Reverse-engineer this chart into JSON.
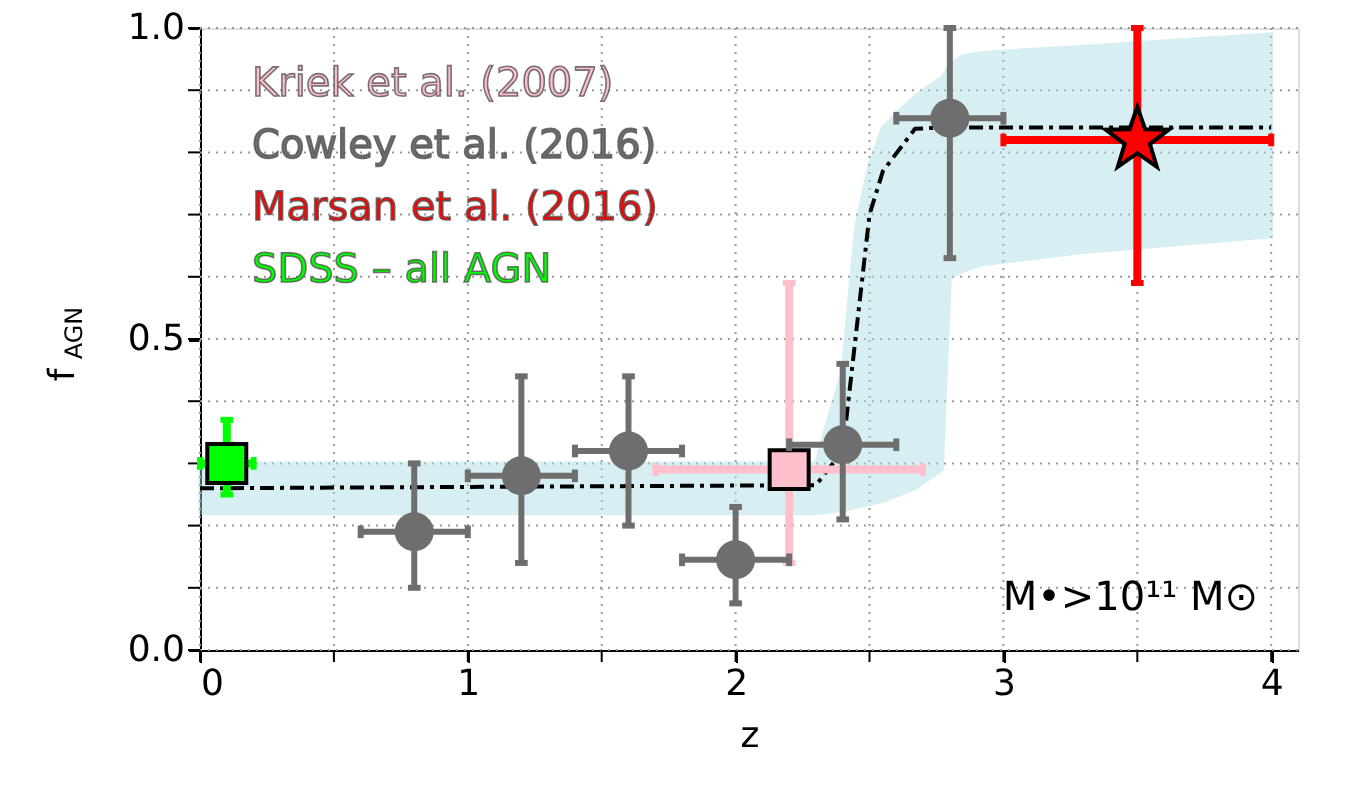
{
  "chart_data": {
    "type": "scatter",
    "xlabel": "z",
    "ylabel": "f$_{AGN}$",
    "xlim": [
      0,
      4.1
    ],
    "ylim": [
      0,
      1.0
    ],
    "xticks": [
      0,
      {
        "value": 0.5,
        "label": null
      },
      1,
      {
        "value": 1.5,
        "label": null
      },
      2,
      {
        "value": 2.5,
        "label": null
      },
      3,
      {
        "value": 3.5,
        "label": null
      },
      4
    ],
    "yticks": [
      {
        "value": 0,
        "label": "0.0"
      },
      {
        "value": 0.1,
        "label": null
      },
      {
        "value": 0.2,
        "label": null
      },
      {
        "value": 0.3,
        "label": null
      },
      {
        "value": 0.4,
        "label": null
      },
      {
        "value": 0.5,
        "label": "0.5"
      },
      {
        "value": 0.6,
        "label": null
      },
      {
        "value": 0.7,
        "label": null
      },
      {
        "value": 0.8,
        "label": null
      },
      {
        "value": 0.9,
        "label": null
      },
      {
        "value": 1.0,
        "label": "1.0"
      }
    ],
    "grid": true,
    "legend": "top left",
    "annotations": [
      "M•>10¹¹ M⊙"
    ],
    "series": [
      {
        "name": "Kriek et al. (2007)",
        "color": "#ffc0cb",
        "marker": "square",
        "x": [
          2.2
        ],
        "values": [
          0.29
        ],
        "errors": [
          [
            0.14,
            0.59
          ]
        ],
        "xerrors": [
          [
            1.7,
            2.7
          ]
        ]
      },
      {
        "name": "Cowley et al. (2016)",
        "color": "#6e6e6e",
        "marker": "circle",
        "x": [
          0.8,
          1.2,
          1.6,
          2.0,
          2.4,
          2.8
        ],
        "values": [
          0.19,
          0.28,
          0.32,
          0.145,
          0.33,
          0.855
        ],
        "errors": [
          [
            0.1,
            0.3
          ],
          [
            0.14,
            0.44
          ],
          [
            0.2,
            0.44
          ],
          [
            0.075,
            0.23
          ],
          [
            0.21,
            0.46
          ],
          [
            0.63,
            1.0
          ]
        ],
        "xerrors": [
          [
            0.6,
            1.0
          ],
          [
            1.0,
            1.4
          ],
          [
            1.4,
            1.8
          ],
          [
            1.8,
            2.2
          ],
          [
            2.2,
            2.6
          ],
          [
            2.6,
            3.0
          ]
        ]
      },
      {
        "name": "Marsan et al. (2016)",
        "color": "#ff0000",
        "marker": "star",
        "x": [
          3.5
        ],
        "values": [
          0.82
        ],
        "errors": [
          [
            0.59,
            1.0
          ]
        ],
        "xerrors": [
          [
            3.0,
            4.0
          ]
        ]
      },
      {
        "name": "SDSS – all AGN",
        "color": "#00ff00",
        "marker": "square",
        "x": [
          0.1
        ],
        "values": [
          0.3
        ],
        "errors": [
          [
            0.25,
            0.37
          ]
        ],
        "xerrors": [
          [
            0.0,
            0.2
          ]
        ]
      },
      {
        "type": "line",
        "color": "#000000",
        "line_style": "dashed",
        "x": [
          0,
          2.3,
          2.4,
          2.45,
          2.5,
          2.55,
          2.67,
          2.77,
          2.8,
          2.85,
          2.92,
          3.3,
          4.0
        ],
        "values": [
          0.26,
          0.265,
          0.32,
          0.51,
          0.7,
          0.77,
          0.838,
          0.84,
          0.84,
          0.84,
          0.84,
          0.84,
          0.84
        ],
        "lower": [
          0.22,
          0.22,
          0.225,
          0.23,
          0.235,
          0.24,
          0.26,
          0.29,
          0.6,
          0.61,
          0.62,
          0.64,
          0.665
        ],
        "upper": [
          0.3,
          0.3,
          0.45,
          0.68,
          0.78,
          0.84,
          0.89,
          0.92,
          0.94,
          0.955,
          0.96,
          0.97,
          0.99
        ]
      }
    ]
  }
}
